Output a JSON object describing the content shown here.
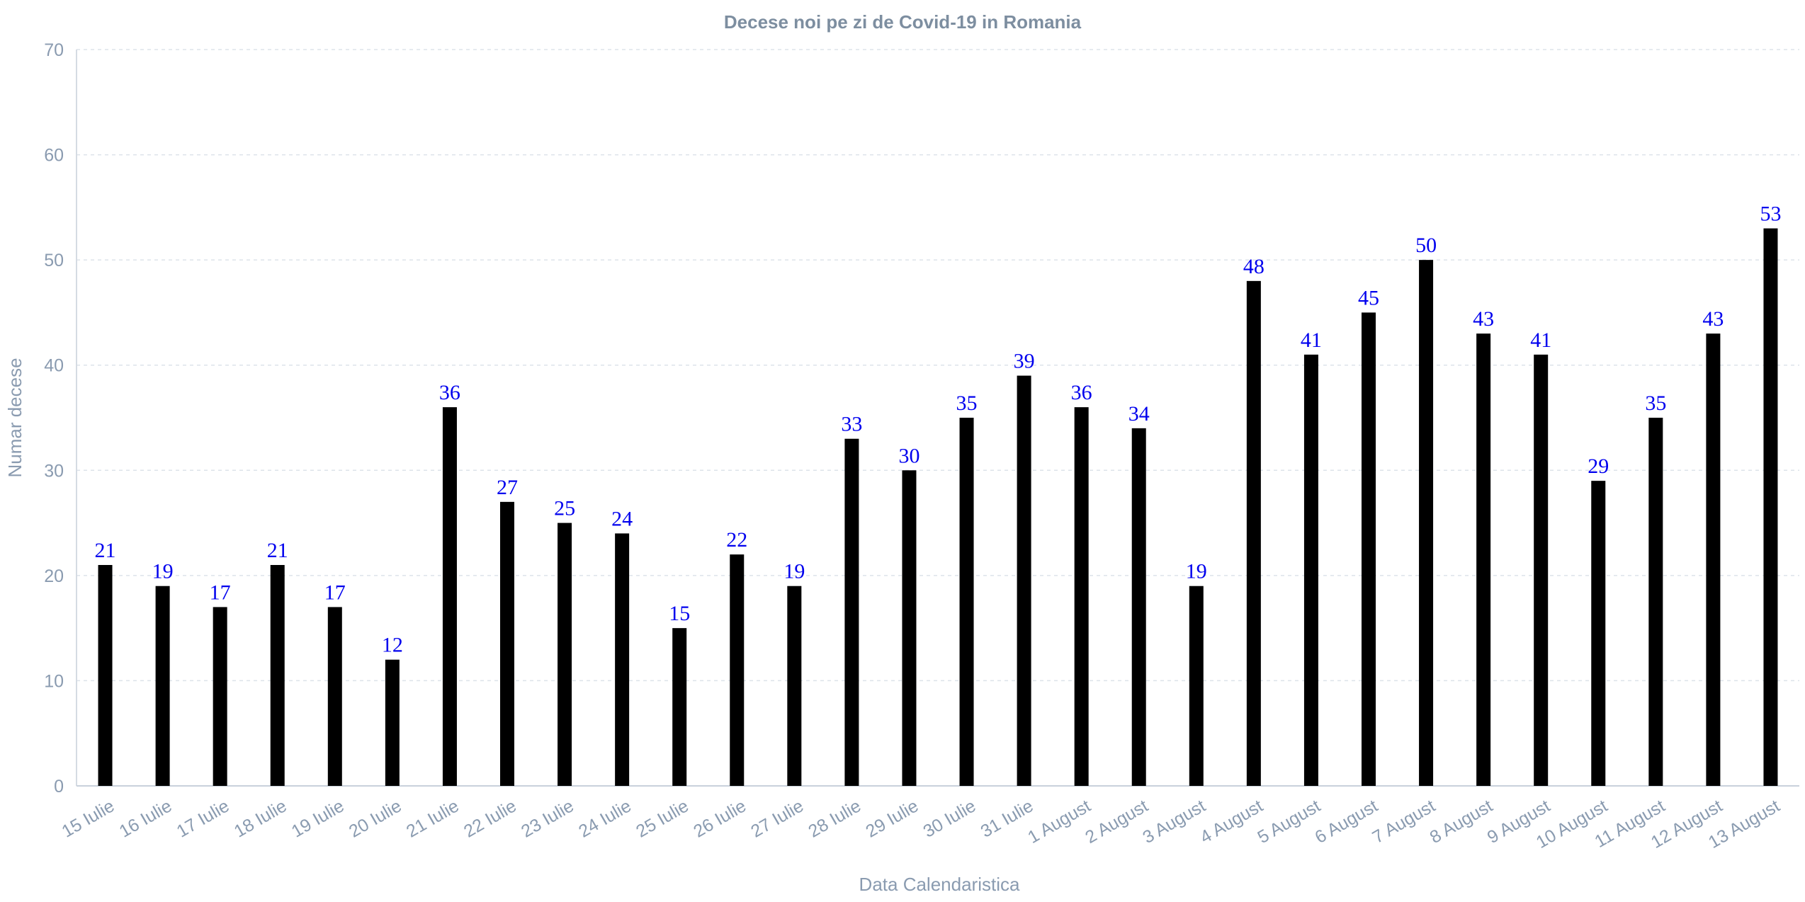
{
  "chart_data": {
    "type": "bar",
    "title": "Decese noi pe zi de Covid-19 in Romania",
    "xlabel": "Data Calendaristica",
    "ylabel": "Numar decese",
    "ylim": [
      0,
      70
    ],
    "yticks": [
      0,
      10,
      20,
      30,
      40,
      50,
      60,
      70
    ],
    "grid": true,
    "categories": [
      "15 Iulie",
      "16 Iulie",
      "17 Iulie",
      "18 Iulie",
      "19 Iulie",
      "20 Iulie",
      "21 Iulie",
      "22 Iulie",
      "23 Iulie",
      "24 Iulie",
      "25 Iulie",
      "26 Iulie",
      "27 Iulie",
      "28 Iulie",
      "29 Iulie",
      "30 Iulie",
      "31 Iulie",
      "1 August",
      "2 August",
      "3 August",
      "4 August",
      "5 August",
      "6 August",
      "7 August",
      "8 August",
      "9 August",
      "10 August",
      "11 August",
      "12 August",
      "13 August"
    ],
    "values": [
      21,
      19,
      17,
      21,
      17,
      12,
      36,
      27,
      25,
      24,
      15,
      22,
      19,
      33,
      30,
      35,
      39,
      36,
      34,
      19,
      48,
      41,
      45,
      50,
      43,
      41,
      29,
      35,
      43,
      53
    ],
    "bar_color": "#000000",
    "label_color": "#0000ee",
    "tick_color": "#8a9bb0",
    "grid_color": "#dde3ea"
  }
}
